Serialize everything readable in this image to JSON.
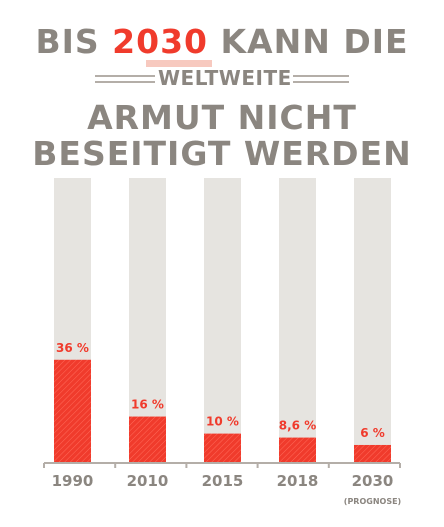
{
  "title": {
    "line1_pre": "BIS ",
    "line1_year": "2030",
    "line1_post": " KANN DIE",
    "line2": "WELTWEITE",
    "line3": "ARMUT NICHT",
    "line4": "BESEITIGT WERDEN"
  },
  "colors": {
    "bar": "#f03b2c",
    "track": "#e6e4e0",
    "text": "#8b8680",
    "value_label": "#f03b2c"
  },
  "chart_data": {
    "type": "bar",
    "categories": [
      "1990",
      "2010",
      "2015",
      "2018",
      "2030"
    ],
    "category_notes": [
      "",
      "",
      "",
      "",
      "(PROGNOSE)"
    ],
    "values": [
      36,
      16,
      10,
      8.6,
      6
    ],
    "value_labels": [
      "36 %",
      "16 %",
      "10 %",
      "8,6 %",
      "6 %"
    ],
    "ylim": [
      0,
      100
    ],
    "grid": false,
    "title": "BIS 2030 KANN DIE WELTWEITE ARMUT NICHT BESEITIGT WERDEN"
  }
}
